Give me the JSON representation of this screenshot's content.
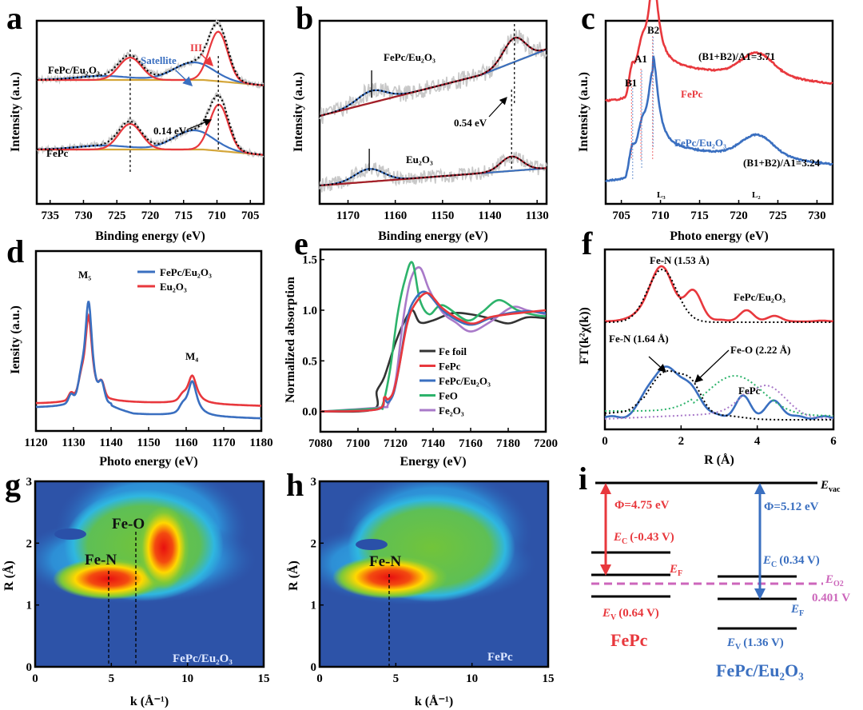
{
  "figure": {
    "colors": {
      "red": "#e8383d",
      "blue": "#3a6fc0",
      "gold": "#d4a63a",
      "gray": "#c8c8c8",
      "green": "#2db36b",
      "purple": "#a97ac9",
      "black": "#333333",
      "magenta": "#cc66bb"
    }
  },
  "chart_data": [
    {
      "panel": "a",
      "type": "line",
      "title": "",
      "xlabel": "Binding energy (eV)",
      "ylabel": "Intensity (a.u.)",
      "xlim": [
        737,
        703
      ],
      "xticks": [
        735,
        730,
        725,
        720,
        715,
        710,
        705
      ],
      "series": [
        {
          "name": "FePc/Eu2O3",
          "label": "FePc/Eu₂O₃",
          "peaks": [
            {
              "center": 723.0,
              "component": "fit"
            },
            {
              "center": 713.5,
              "component": "Satellite"
            },
            {
              "center": 709.8,
              "component": "III"
            }
          ]
        },
        {
          "name": "FePc",
          "label": "FePc",
          "peaks": [
            {
              "center": 723.0,
              "component": "fit"
            },
            {
              "center": 713.5,
              "component": "Satellite"
            },
            {
              "center": 709.7,
              "component": "III"
            }
          ]
        }
      ],
      "annotations": [
        "III",
        "Satellite",
        "0.14 eV",
        "FePc/Eu₂O₃",
        "FePc"
      ]
    },
    {
      "panel": "b",
      "type": "line",
      "xlabel": "Binding energy (eV)",
      "ylabel": "Intensity (a.u.)",
      "xlim": [
        1176,
        1128
      ],
      "xticks": [
        1170,
        1160,
        1150,
        1140,
        1130
      ],
      "series": [
        {
          "name": "FePc/Eu2O3",
          "label": "FePc/Eu₂O₃",
          "peaks": [
            1165.0,
            1134.8
          ]
        },
        {
          "name": "Eu2O3",
          "label": "Eu₂O₃",
          "peaks": [
            1165.5,
            1135.4
          ]
        }
      ],
      "annotations": [
        "0.54 eV"
      ]
    },
    {
      "panel": "c",
      "type": "line",
      "xlabel": "Photo energy (eV)",
      "ylabel": "Intensity (a.u.)",
      "xlim": [
        703,
        732
      ],
      "xticks": [
        705,
        710,
        715,
        720,
        725,
        730
      ],
      "series": [
        {
          "name": "FePc",
          "label": "FePc",
          "ratio_label": "(B1+B2)/A1=3.71"
        },
        {
          "name": "FePc/Eu2O3",
          "label": "FePc/Eu₂O₃",
          "ratio_label": "(B1+B2)/A1=3.24"
        }
      ],
      "peak_labels": [
        "B1",
        "A1",
        "B2",
        "L₃",
        "L₂"
      ],
      "peak_positions": {
        "B1": 706.3,
        "A1": 707.5,
        "B2": 709.0,
        "L3": 709.0,
        "L2": 722.3
      }
    },
    {
      "panel": "d",
      "type": "line",
      "xlabel": "Photo energy (eV)",
      "ylabel": "Iensity (a.u.)",
      "xlim": [
        1120,
        1180
      ],
      "xticks": [
        1120,
        1130,
        1140,
        1150,
        1160,
        1170,
        1180
      ],
      "legend": [
        "FePc/Eu₂O₃",
        "Eu₂O₃"
      ],
      "legend_position": "top-right",
      "series": [
        {
          "name": "FePc/Eu2O3",
          "peaks": [
            1134,
            1161.5
          ]
        },
        {
          "name": "Eu2O3",
          "peaks": [
            1134,
            1161.5
          ]
        }
      ],
      "peak_labels": [
        "M₅",
        "M₄"
      ]
    },
    {
      "panel": "e",
      "type": "line",
      "xlabel": "Energy (eV)",
      "ylabel": "Normalized absorption",
      "xlim": [
        7080,
        7200
      ],
      "ylim": [
        -0.2,
        1.6
      ],
      "xticks": [
        7080,
        7100,
        7120,
        7140,
        7160,
        7180,
        7200
      ],
      "yticks": [
        "0.0",
        "0.5",
        "1.0",
        "1.5"
      ],
      "legend": [
        "Fe foil",
        "FePc",
        "FePc/Eu₂O₃",
        "FeO",
        "Fe₂O₃"
      ],
      "legend_position": "bottom-right",
      "series": [
        {
          "name": "Fe foil",
          "x": [
            7080,
            7108,
            7110,
            7114,
            7120,
            7125,
            7129,
            7133,
            7140,
            7150,
            7160,
            7170,
            7180,
            7190,
            7200
          ],
          "y": [
            0,
            0.02,
            0.2,
            0.34,
            0.68,
            0.9,
            1.0,
            0.88,
            0.9,
            0.97,
            0.96,
            0.92,
            0.87,
            0.93,
            0.92
          ]
        },
        {
          "name": "FePc",
          "x": [
            7080,
            7110,
            7114,
            7116,
            7119,
            7122,
            7126,
            7130,
            7137,
            7145,
            7155,
            7162,
            7170,
            7180,
            7190,
            7200
          ],
          "y": [
            0,
            0.02,
            0.14,
            0.12,
            0.2,
            0.45,
            0.85,
            1.05,
            1.17,
            1.02,
            0.9,
            0.87,
            0.93,
            0.96,
            0.98,
            1.0
          ]
        },
        {
          "name": "FePc/Eu2O3",
          "x": [
            7080,
            7110,
            7114,
            7116,
            7119,
            7122,
            7126,
            7130,
            7136,
            7145,
            7155,
            7162,
            7170,
            7180,
            7190,
            7200
          ],
          "y": [
            0,
            0.02,
            0.11,
            0.09,
            0.18,
            0.45,
            0.9,
            1.1,
            1.18,
            1.0,
            0.88,
            0.86,
            0.92,
            0.97,
            0.99,
            0.97
          ]
        },
        {
          "name": "FeO",
          "x": [
            7080,
            7110,
            7113,
            7117,
            7121,
            7125,
            7129,
            7133,
            7138,
            7145,
            7158,
            7166,
            7175,
            7185,
            7195,
            7200
          ],
          "y": [
            0,
            0.03,
            0.06,
            0.4,
            0.95,
            1.3,
            1.47,
            1.1,
            0.96,
            1.05,
            0.9,
            0.98,
            1.1,
            1.0,
            0.95,
            0.94
          ]
        },
        {
          "name": "Fe2O3",
          "x": [
            7080,
            7112,
            7116,
            7120,
            7124,
            7128,
            7133,
            7138,
            7145,
            7152,
            7160,
            7170,
            7182,
            7190,
            7200
          ],
          "y": [
            0,
            0.04,
            0.07,
            0.3,
            0.9,
            1.3,
            1.42,
            1.2,
            0.98,
            0.88,
            0.79,
            0.88,
            1.03,
            1.0,
            0.96
          ]
        }
      ]
    },
    {
      "panel": "f",
      "type": "line",
      "xlabel": "R (Å)",
      "ylabel": "FT(k²χ(k))",
      "xlim": [
        0,
        6
      ],
      "xticks": [
        0,
        2,
        4,
        6
      ],
      "series": [
        {
          "name": "FePc/Eu2O3",
          "label": "FePc/Eu₂O₃",
          "peak_label": "Fe-N (1.53 Å)"
        },
        {
          "name": "FePc",
          "label": "FePc",
          "peak_labels": [
            "Fe-N (1.64 Å)",
            "Fe-O (2.22 Å)"
          ]
        }
      ]
    },
    {
      "panel": "g",
      "type": "heatmap",
      "xlabel": "k (Å⁻¹)",
      "ylabel": "R (Å)",
      "xlim": [
        0,
        15
      ],
      "ylim": [
        0,
        3
      ],
      "xticks": [
        0,
        5,
        10,
        15
      ],
      "yticks": [
        0,
        1,
        2,
        3
      ],
      "sample": "FePc/Eu₂O₃",
      "maxima": [
        {
          "label": "Fe-N",
          "k": 4.9,
          "R": 1.55
        },
        {
          "label": "Fe-O",
          "k": 6.6,
          "R": 2.2
        }
      ]
    },
    {
      "panel": "h",
      "type": "heatmap",
      "xlabel": "k (Å⁻¹)",
      "ylabel": "R (Å)",
      "xlim": [
        0,
        15
      ],
      "ylim": [
        0,
        3
      ],
      "xticks": [
        0,
        5,
        10,
        15
      ],
      "yticks": [
        0,
        1,
        2,
        3
      ],
      "sample": "FePc",
      "maxima": [
        {
          "label": "Fe-N",
          "k": 4.6,
          "R": 1.5
        }
      ]
    },
    {
      "panel": "i",
      "type": "diagram",
      "vacuum_label": "E",
      "vacuum_sub": "vac",
      "O2_label": "E",
      "O2_sub": "O2",
      "O2_value": "0.401 V",
      "materials": [
        {
          "name": "FePc",
          "phi": "Φ=4.75 eV",
          "Ec_label": "(-0.43 V)",
          "Ev_label": "(0.64 V)",
          "EF": "F"
        },
        {
          "name": "FePc/Eu₂O₃",
          "phi": "Φ=5.12 eV",
          "Ec_label": "(0.34 V)",
          "Ev_label": "(1.36 V)",
          "EF": "F"
        }
      ]
    }
  ],
  "panel_labels": [
    "a",
    "b",
    "c",
    "d",
    "e",
    "f",
    "g",
    "h",
    "i"
  ],
  "text": {
    "a_fepc_eu": "FePc/Eu₂O₃",
    "a_fepc": "FePc",
    "a_sat": "Satellite",
    "a_iii": "III",
    "a_shift": "0.14 eV",
    "b_fepc_eu": "FePc/Eu₂O₃",
    "b_eu": "Eu₂O₃",
    "b_shift": "0.54 eV",
    "c_b1": "B1",
    "c_a1": "A1",
    "c_b2": "B2",
    "c_r1": "(B1+B2)/A1=3.71",
    "c_r2": "(B1+B2)/A1=3.24",
    "c_fepc": "FePc",
    "c_fepceu": "FePc/Eu₂O₃",
    "c_l3": "L₃",
    "c_l2": "L₂",
    "d_m5": "M₅",
    "d_m4": "M₄",
    "f_fen1": "Fe-N (1.53 Å)",
    "f_fen2": "Fe-N (1.64 Å)",
    "f_feo": "Fe-O (2.22 Å)",
    "f_fepceu": "FePc/Eu₂O₃",
    "f_fepc": "FePc",
    "g_fen": "Fe-N",
    "g_feo": "Fe-O",
    "g_sample": "FePc/Eu₂O₃",
    "h_fen": "Fe-N",
    "h_sample": "FePc",
    "i_ec": "E",
    "i_ec_sub": "C",
    "i_ev": "E",
    "i_ev_sub": "V",
    "i_ef": "E"
  }
}
